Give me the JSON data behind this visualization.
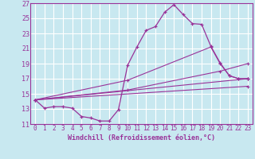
{
  "background_color": "#c8e8f0",
  "grid_color": "#ffffff",
  "line_color": "#993399",
  "xlabel": "Windchill (Refroidissement éolien,°C)",
  "xlim": [
    -0.5,
    23.5
  ],
  "ylim": [
    11,
    27
  ],
  "yticks": [
    11,
    13,
    15,
    17,
    19,
    21,
    23,
    25,
    27
  ],
  "xticks": [
    0,
    1,
    2,
    3,
    4,
    5,
    6,
    7,
    8,
    9,
    10,
    11,
    12,
    13,
    14,
    15,
    16,
    17,
    18,
    19,
    20,
    21,
    22,
    23
  ],
  "lines": [
    {
      "x": [
        0,
        1,
        2,
        3,
        4,
        5,
        6,
        7,
        8,
        9,
        10,
        11,
        12,
        13,
        14,
        15,
        16,
        17,
        18,
        19,
        20,
        21,
        22,
        23
      ],
      "y": [
        14.2,
        13.1,
        13.3,
        13.3,
        13.1,
        12.0,
        11.8,
        11.4,
        11.4,
        12.9,
        18.8,
        21.2,
        23.4,
        23.9,
        25.8,
        26.8,
        25.5,
        24.3,
        24.2,
        21.3,
        19.1,
        17.4,
        17.0,
        17.0
      ]
    },
    {
      "x": [
        0,
        23
      ],
      "y": [
        14.2,
        17.0
      ]
    },
    {
      "x": [
        0,
        23
      ],
      "y": [
        14.2,
        16.0
      ]
    },
    {
      "x": [
        0,
        10,
        20,
        23
      ],
      "y": [
        14.2,
        15.5,
        18.0,
        19.0
      ]
    },
    {
      "x": [
        0,
        10,
        19,
        20,
        21,
        22,
        23
      ],
      "y": [
        14.2,
        16.8,
        21.2,
        19.0,
        17.4,
        17.0,
        17.0
      ]
    }
  ]
}
